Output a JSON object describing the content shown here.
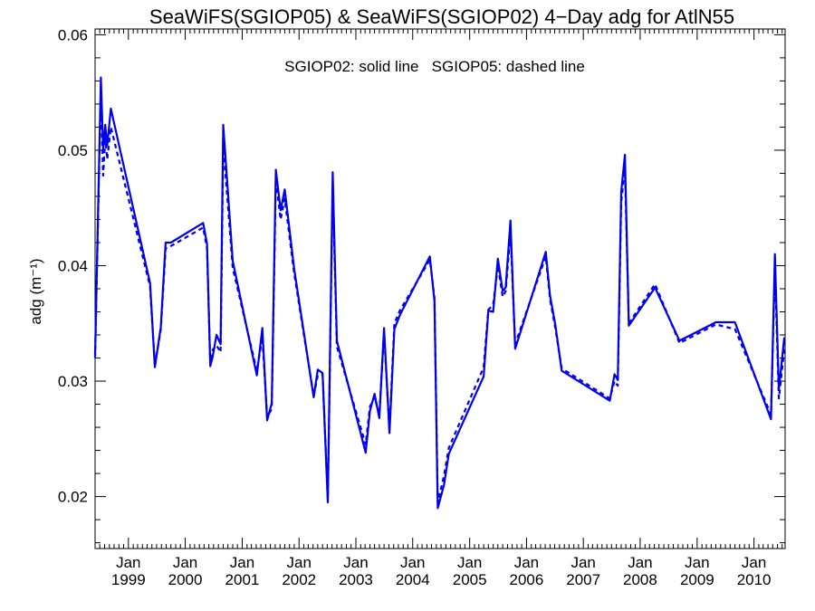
{
  "chart_data": {
    "type": "line",
    "title": "SeaWiFS(SGIOP05) & SeaWiFS(SGIOP02) 4−Day adg for AtlN55",
    "annotation": "SGIOP02: solid line   SGIOP05: dashed line",
    "ylabel": "adg (m⁻¹)",
    "xlabel": "",
    "ylim": [
      0.0155,
      0.0605
    ],
    "y_ticks": [
      {
        "value": 0.02,
        "label": "0.02"
      },
      {
        "value": 0.03,
        "label": "0.03"
      },
      {
        "value": 0.04,
        "label": "0.04"
      },
      {
        "value": 0.05,
        "label": "0.05"
      },
      {
        "value": 0.06,
        "label": "0.06"
      }
    ],
    "xlim": [
      "1998-06-01",
      "2010-07-20"
    ],
    "x_ticks": [
      {
        "date": "1999-01-01",
        "month": "Jan",
        "year": "1999"
      },
      {
        "date": "2000-01-01",
        "month": "Jan",
        "year": "2000"
      },
      {
        "date": "2001-01-01",
        "month": "Jan",
        "year": "2001"
      },
      {
        "date": "2002-01-01",
        "month": "Jan",
        "year": "2002"
      },
      {
        "date": "2003-01-01",
        "month": "Jan",
        "year": "2003"
      },
      {
        "date": "2004-01-01",
        "month": "Jan",
        "year": "2004"
      },
      {
        "date": "2005-01-01",
        "month": "Jan",
        "year": "2005"
      },
      {
        "date": "2006-01-01",
        "month": "Jan",
        "year": "2006"
      },
      {
        "date": "2007-01-01",
        "month": "Jan",
        "year": "2007"
      },
      {
        "date": "2008-01-01",
        "month": "Jan",
        "year": "2008"
      },
      {
        "date": "2009-01-01",
        "month": "Jan",
        "year": "2009"
      },
      {
        "date": "2010-01-01",
        "month": "Jan",
        "year": "2010"
      }
    ],
    "grid": false,
    "line_color": "#0000ee",
    "series": [
      {
        "style": "solid",
        "points": [
          [
            "1998-06-01",
            0.0322
          ],
          [
            "1998-07-08",
            0.0563
          ],
          [
            "1998-07-23",
            0.05
          ],
          [
            "1998-08-05",
            0.0522
          ],
          [
            "1998-08-18",
            0.0504
          ],
          [
            "1998-09-10",
            0.0536
          ],
          [
            "1999-05-20",
            0.0385
          ],
          [
            "1999-06-20",
            0.0312
          ],
          [
            "1999-07-28",
            0.0347
          ],
          [
            "1999-08-28",
            0.042
          ],
          [
            "1999-10-01",
            0.042
          ],
          [
            "2000-04-25",
            0.0437
          ],
          [
            "2000-05-20",
            0.0419
          ],
          [
            "2000-06-10",
            0.0313
          ],
          [
            "2000-06-25",
            0.0321
          ],
          [
            "2000-07-20",
            0.034
          ],
          [
            "2000-08-15",
            0.0332
          ],
          [
            "2000-09-01",
            0.0522
          ],
          [
            "2000-11-01",
            0.0404
          ],
          [
            "2001-04-05",
            0.0305
          ],
          [
            "2001-05-10",
            0.0346
          ],
          [
            "2001-06-10",
            0.0266
          ],
          [
            "2001-07-10",
            0.0281
          ],
          [
            "2001-08-05",
            0.0483
          ],
          [
            "2001-09-05",
            0.0448
          ],
          [
            "2001-10-01",
            0.0466
          ],
          [
            "2001-12-01",
            0.0397
          ],
          [
            "2002-04-05",
            0.0286
          ],
          [
            "2002-05-01",
            0.031
          ],
          [
            "2002-06-01",
            0.0307
          ],
          [
            "2002-07-05",
            0.0195
          ],
          [
            "2002-08-05",
            0.0481
          ],
          [
            "2002-09-01",
            0.0335
          ],
          [
            "2003-03-05",
            0.0238
          ],
          [
            "2003-04-01",
            0.0274
          ],
          [
            "2003-05-01",
            0.0289
          ],
          [
            "2003-06-01",
            0.0268
          ],
          [
            "2003-07-01",
            0.0346
          ],
          [
            "2003-08-05",
            0.0255
          ],
          [
            "2003-09-05",
            0.0345
          ],
          [
            "2003-10-10",
            0.0357
          ],
          [
            "2004-04-20",
            0.0408
          ],
          [
            "2004-05-20",
            0.0369
          ],
          [
            "2004-06-10",
            0.019
          ],
          [
            "2004-07-20",
            0.021
          ],
          [
            "2004-08-20",
            0.0237
          ],
          [
            "2005-04-01",
            0.0304
          ],
          [
            "2005-05-01",
            0.0361
          ],
          [
            "2005-06-01",
            0.036
          ],
          [
            "2005-07-01",
            0.0406
          ],
          [
            "2005-08-01",
            0.0378
          ],
          [
            "2005-08-20",
            0.0381
          ],
          [
            "2005-09-20",
            0.0439
          ],
          [
            "2005-10-20",
            0.0328
          ],
          [
            "2006-05-05",
            0.0412
          ],
          [
            "2006-06-01",
            0.0374
          ],
          [
            "2006-07-05",
            0.0349
          ],
          [
            "2006-08-15",
            0.0309
          ],
          [
            "2007-06-20",
            0.0283
          ],
          [
            "2007-07-20",
            0.0306
          ],
          [
            "2007-08-10",
            0.0301
          ],
          [
            "2007-09-01",
            0.0464
          ],
          [
            "2007-09-25",
            0.0496
          ],
          [
            "2007-10-20",
            0.0348
          ],
          [
            "2008-04-05",
            0.0381
          ],
          [
            "2008-09-10",
            0.0335
          ],
          [
            "2009-05-01",
            0.0351
          ],
          [
            "2009-09-01",
            0.0351
          ],
          [
            "2010-04-20",
            0.0267
          ],
          [
            "2010-05-15",
            0.041
          ],
          [
            "2010-06-10",
            0.0293
          ],
          [
            "2010-07-15",
            0.0338
          ]
        ]
      },
      {
        "style": "dashed",
        "points": [
          [
            "1998-06-01",
            0.032
          ],
          [
            "1998-07-08",
            0.0555
          ],
          [
            "1998-07-23",
            0.0478
          ],
          [
            "1998-08-05",
            0.0512
          ],
          [
            "1998-08-18",
            0.0492
          ],
          [
            "1998-09-10",
            0.052
          ],
          [
            "1999-05-20",
            0.0382
          ],
          [
            "1999-06-20",
            0.0313
          ],
          [
            "1999-07-28",
            0.0345
          ],
          [
            "1999-08-28",
            0.0415
          ],
          [
            "1999-10-01",
            0.0417
          ],
          [
            "2000-04-25",
            0.0433
          ],
          [
            "2000-05-20",
            0.0415
          ],
          [
            "2000-06-10",
            0.0315
          ],
          [
            "2000-06-25",
            0.0327
          ],
          [
            "2000-07-20",
            0.0331
          ],
          [
            "2000-08-15",
            0.0325
          ],
          [
            "2000-09-01",
            0.0505
          ],
          [
            "2000-11-01",
            0.0398
          ],
          [
            "2001-04-05",
            0.0309
          ],
          [
            "2001-05-10",
            0.0338
          ],
          [
            "2001-06-10",
            0.0269
          ],
          [
            "2001-07-10",
            0.0276
          ],
          [
            "2001-08-05",
            0.0475
          ],
          [
            "2001-09-05",
            0.044
          ],
          [
            "2001-10-01",
            0.0458
          ],
          [
            "2001-12-01",
            0.0393
          ],
          [
            "2002-04-05",
            0.0287
          ],
          [
            "2002-05-01",
            0.0305
          ],
          [
            "2002-06-01",
            0.0306
          ],
          [
            "2002-07-05",
            0.0198
          ],
          [
            "2002-08-05",
            0.047
          ],
          [
            "2002-09-01",
            0.033
          ],
          [
            "2003-03-05",
            0.0245
          ],
          [
            "2003-04-01",
            0.0278
          ],
          [
            "2003-05-01",
            0.0286
          ],
          [
            "2003-06-01",
            0.0271
          ],
          [
            "2003-07-01",
            0.0342
          ],
          [
            "2003-08-05",
            0.0258
          ],
          [
            "2003-09-05",
            0.035
          ],
          [
            "2003-10-10",
            0.0361
          ],
          [
            "2004-04-20",
            0.0405
          ],
          [
            "2004-05-20",
            0.0372
          ],
          [
            "2004-06-10",
            0.0195
          ],
          [
            "2004-07-20",
            0.0218
          ],
          [
            "2004-08-20",
            0.0242
          ],
          [
            "2005-04-01",
            0.0312
          ],
          [
            "2005-05-01",
            0.0362
          ],
          [
            "2005-06-01",
            0.0366
          ],
          [
            "2005-07-01",
            0.04
          ],
          [
            "2005-08-01",
            0.0373
          ],
          [
            "2005-08-20",
            0.0378
          ],
          [
            "2005-09-20",
            0.0428
          ],
          [
            "2005-10-20",
            0.0332
          ],
          [
            "2006-05-05",
            0.0408
          ],
          [
            "2006-06-01",
            0.0371
          ],
          [
            "2006-07-05",
            0.0346
          ],
          [
            "2006-08-15",
            0.0311
          ],
          [
            "2007-06-20",
            0.0285
          ],
          [
            "2007-07-20",
            0.03
          ],
          [
            "2007-08-10",
            0.0296
          ],
          [
            "2007-09-01",
            0.0455
          ],
          [
            "2007-09-25",
            0.0484
          ],
          [
            "2007-10-20",
            0.035
          ],
          [
            "2008-04-05",
            0.0384
          ],
          [
            "2008-09-10",
            0.0333
          ],
          [
            "2009-05-01",
            0.0349
          ],
          [
            "2009-09-01",
            0.0345
          ],
          [
            "2010-04-20",
            0.0271
          ],
          [
            "2010-05-15",
            0.0398
          ],
          [
            "2010-06-10",
            0.0285
          ],
          [
            "2010-07-15",
            0.0328
          ]
        ]
      }
    ]
  }
}
